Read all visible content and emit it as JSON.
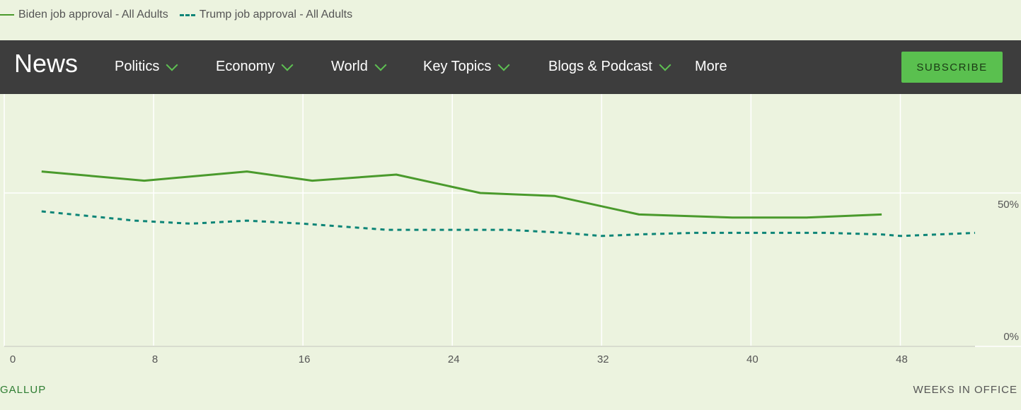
{
  "legend": {
    "biden_label": "Biden job approval - All Adults",
    "trump_label": "Trump job approval - All Adults"
  },
  "nav": {
    "brand": "News",
    "items": [
      "Politics",
      "Economy",
      "World",
      "Key Topics",
      "Blogs & Podcast",
      "More"
    ],
    "subscribe": "SUBSCRIBE"
  },
  "footer": {
    "source": "GALLUP",
    "axis_caption": "WEEKS IN OFFICE"
  },
  "colors": {
    "biden": "#4a9a2c",
    "trump": "#0d8577",
    "accent": "#5ac04f",
    "nav_bg": "#3d3d3d",
    "background": "#ecf3df"
  },
  "chart_data": {
    "type": "line",
    "xlabel": "WEEKS IN OFFICE",
    "ylabel": "",
    "xlim": [
      0,
      52
    ],
    "ylim": [
      0,
      100
    ],
    "x_ticks": [
      0,
      8,
      16,
      24,
      32,
      40,
      48
    ],
    "y_ticks": [
      0,
      50
    ],
    "y_tick_labels": [
      "0%",
      "50%"
    ],
    "grid": true,
    "legend_position": "top-left",
    "series": [
      {
        "name": "Biden job approval - All Adults",
        "style": "solid",
        "x": [
          2,
          7.5,
          13,
          16.5,
          21,
          25.5,
          29.5,
          34,
          39,
          43,
          47
        ],
        "y": [
          57,
          54,
          57,
          54,
          56,
          50,
          49,
          43,
          42,
          42,
          43
        ]
      },
      {
        "name": "Trump job approval - All Adults",
        "style": "dashed",
        "x": [
          2,
          7,
          10,
          13,
          16,
          20.5,
          24,
          27,
          30,
          32,
          34,
          37,
          40,
          44,
          47,
          48,
          50,
          52
        ],
        "y": [
          44,
          41,
          40,
          41,
          40,
          38,
          38,
          38,
          37,
          36,
          36.5,
          37,
          37,
          37,
          36.5,
          36,
          36.5,
          37
        ]
      }
    ]
  }
}
